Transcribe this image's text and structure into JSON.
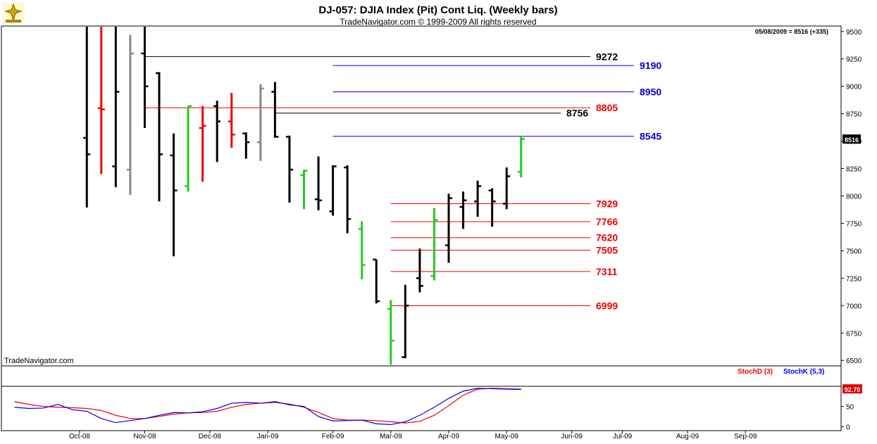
{
  "header": {
    "title": "DJ-057:  DJIA Index (Pit) Cont Liq.  (Weekly bars)",
    "copyright": "TradeNavigator.com © 1999-2009 All rights reserved",
    "last_update": "05/08/2009 = 8516 (+335)",
    "watermark": "TradeNavigator.com"
  },
  "colors": {
    "bar": "#000000",
    "up_bar": "#22cc22",
    "highlight_red": "#ee0000",
    "highlight_gray": "#888888",
    "support": "#ee0000",
    "resistance_blue": "#0000cc",
    "stoch_d": "#ee0000",
    "stoch_k": "#0000ee"
  },
  "chart_data": [
    {
      "type": "ohlc",
      "title": "DJ-057:  DJIA Index (Pit) Cont Liq.  (Weekly bars)",
      "x_ticks": [
        {
          "week": 4.5,
          "label": "Oct-08"
        },
        {
          "week": 9,
          "label": "Nov-08"
        },
        {
          "week": 13.5,
          "label": "Dec-08"
        },
        {
          "week": 17.5,
          "label": "Jan-09"
        },
        {
          "week": 22,
          "label": "Feb-09"
        },
        {
          "week": 26,
          "label": "Mar-09"
        },
        {
          "week": 30,
          "label": "Apr-09"
        },
        {
          "week": 34,
          "label": "May-09"
        },
        {
          "week": 38.5,
          "label": "Jun-09"
        },
        {
          "week": 42,
          "label": "Jul-09"
        },
        {
          "week": 46.5,
          "label": "Aug-09"
        },
        {
          "week": 50.5,
          "label": "Sep-09"
        }
      ],
      "y_ticks": [
        6500,
        6750,
        7000,
        7250,
        7500,
        7750,
        8000,
        8250,
        8500,
        8750,
        9000,
        9250,
        9500
      ],
      "ylim": [
        6450,
        9550
      ],
      "xlim": [
        0,
        55
      ],
      "bars": [
        {
          "w": 5,
          "o": 8530,
          "h": 9550,
          "l": 7895,
          "c": 8380,
          "color": "bar"
        },
        {
          "w": 6,
          "o": 8800,
          "h": 9550,
          "l": 8200,
          "c": 8790,
          "color": "highlight_red"
        },
        {
          "w": 7,
          "o": 8270,
          "h": 9600,
          "l": 8080,
          "c": 8950,
          "color": "bar"
        },
        {
          "w": 8,
          "o": 8240,
          "h": 9470,
          "l": 8010,
          "c": 9300,
          "color": "highlight_gray"
        },
        {
          "w": 9,
          "o": 9300,
          "h": 9550,
          "l": 8620,
          "c": 9000,
          "color": "bar"
        },
        {
          "w": 10,
          "o": 9120,
          "h": 9130,
          "l": 7950,
          "c": 8380,
          "color": "bar"
        },
        {
          "w": 11,
          "o": 8370,
          "h": 8570,
          "l": 7450,
          "c": 8050,
          "color": "bar"
        },
        {
          "w": 12,
          "o": 8090,
          "h": 8820,
          "l": 8040,
          "c": 8820,
          "color": "up_bar"
        },
        {
          "w": 13,
          "o": 8620,
          "h": 8820,
          "l": 8130,
          "c": 8640,
          "color": "highlight_red"
        },
        {
          "w": 14,
          "o": 8820,
          "h": 8870,
          "l": 8310,
          "c": 8680,
          "color": "bar"
        },
        {
          "w": 15,
          "o": 8680,
          "h": 8940,
          "l": 8440,
          "c": 8560,
          "color": "highlight_red"
        },
        {
          "w": 16,
          "o": 8570,
          "h": 8580,
          "l": 8340,
          "c": 8490,
          "color": "bar"
        },
        {
          "w": 17,
          "o": 8490,
          "h": 9020,
          "l": 8320,
          "c": 8980,
          "color": "highlight_gray"
        },
        {
          "w": 18,
          "o": 8950,
          "h": 9040,
          "l": 8530,
          "c": 8540,
          "color": "bar"
        },
        {
          "w": 19,
          "o": 8540,
          "h": 8550,
          "l": 7940,
          "c": 8240,
          "color": "bar"
        },
        {
          "w": 20,
          "o": 8190,
          "h": 8240,
          "l": 7880,
          "c": 8230,
          "color": "up_bar"
        },
        {
          "w": 21,
          "o": 7970,
          "h": 8360,
          "l": 7870,
          "c": 7960,
          "color": "bar"
        },
        {
          "w": 22,
          "o": 7860,
          "h": 8280,
          "l": 7820,
          "c": 8270,
          "color": "bar"
        },
        {
          "w": 23,
          "o": 8260,
          "h": 8280,
          "l": 7660,
          "c": 7790,
          "color": "bar"
        },
        {
          "w": 24,
          "o": 7700,
          "h": 7770,
          "l": 7240,
          "c": 7370,
          "color": "up_bar"
        },
        {
          "w": 25,
          "o": 7420,
          "h": 7420,
          "l": 7020,
          "c": 7040,
          "color": "bar"
        },
        {
          "w": 26,
          "o": 6970,
          "h": 7050,
          "l": 6460,
          "c": 6680,
          "color": "up_bar"
        },
        {
          "w": 27,
          "o": 6530,
          "h": 7190,
          "l": 6520,
          "c": 7000,
          "color": "bar"
        },
        {
          "w": 28,
          "o": 7250,
          "h": 7520,
          "l": 7120,
          "c": 7180,
          "color": "bar"
        },
        {
          "w": 29,
          "o": 7270,
          "h": 7890,
          "l": 7230,
          "c": 7780,
          "color": "up_bar"
        },
        {
          "w": 30,
          "o": 7550,
          "h": 8020,
          "l": 7390,
          "c": 7980,
          "color": "bar"
        },
        {
          "w": 31,
          "o": 7900,
          "h": 8040,
          "l": 7700,
          "c": 7960,
          "color": "bar"
        },
        {
          "w": 32,
          "o": 7950,
          "h": 8140,
          "l": 7810,
          "c": 8090,
          "color": "bar"
        },
        {
          "w": 33,
          "o": 8050,
          "h": 8070,
          "l": 7720,
          "c": 7950,
          "color": "bar"
        },
        {
          "w": 34,
          "o": 7930,
          "h": 8260,
          "l": 7880,
          "c": 8180,
          "color": "bar"
        },
        {
          "w": 35,
          "o": 8220,
          "h": 8550,
          "l": 8170,
          "c": 8520,
          "color": "up_bar"
        }
      ],
      "levels": [
        {
          "value": 9272,
          "label": "9272",
          "from_week": 9,
          "color": "bar"
        },
        {
          "value": 9190,
          "label": "9190",
          "from_week": 22,
          "color": "resistance_blue"
        },
        {
          "value": 8950,
          "label": "8950",
          "from_week": 22,
          "color": "resistance_blue"
        },
        {
          "value": 8805,
          "label": "8805",
          "from_week": 9,
          "color": "support"
        },
        {
          "value": 8756,
          "label": "8756",
          "from_week": 18,
          "color": "bar"
        },
        {
          "value": 8545,
          "label": "8545",
          "from_week": 22,
          "color": "resistance_blue"
        },
        {
          "value": 7929,
          "label": "7929",
          "from_week": 26,
          "color": "support"
        },
        {
          "value": 7766,
          "label": "7766",
          "from_week": 26,
          "color": "support"
        },
        {
          "value": 7620,
          "label": "7620",
          "from_week": 26,
          "color": "support"
        },
        {
          "value": 7505,
          "label": "7505",
          "from_week": 26,
          "color": "support"
        },
        {
          "value": 7311,
          "label": "7311",
          "from_week": 26,
          "color": "support"
        },
        {
          "value": 6999,
          "label": "6999",
          "from_week": 26,
          "color": "support"
        }
      ],
      "last_price_label": "8516",
      "last_price": 8516
    },
    {
      "type": "line",
      "legend": [
        {
          "name": "StochD (3)",
          "color": "stoch_d"
        },
        {
          "name": "StochK (5,3)",
          "color": "stoch_k"
        }
      ],
      "y_ticks": [
        0,
        50
      ],
      "ylim": [
        -10,
        100
      ],
      "last_value_label": "92.70",
      "last_value": 92.7,
      "series": [
        {
          "name": "StochD (3)",
          "color": "stoch_d",
          "x": [
            0,
            1,
            2,
            3,
            4,
            5,
            6,
            7,
            8,
            9,
            10,
            11,
            12,
            13,
            14,
            15,
            16,
            17,
            18,
            19,
            20,
            21,
            22,
            23,
            24,
            25,
            26,
            27,
            28,
            29,
            30,
            31,
            32,
            33,
            34,
            35
          ],
          "values": [
            62,
            55,
            50,
            48,
            47,
            45,
            40,
            28,
            20,
            20,
            25,
            31,
            34,
            35,
            38,
            48,
            55,
            58,
            60,
            56,
            48,
            35,
            20,
            16,
            16,
            15,
            12,
            9,
            13,
            28,
            52,
            78,
            93,
            95,
            94,
            93
          ]
        },
        {
          "name": "StochK (5,3)",
          "color": "stoch_k",
          "x": [
            0,
            1,
            2,
            3,
            4,
            5,
            6,
            7,
            8,
            9,
            10,
            11,
            12,
            13,
            14,
            15,
            16,
            17,
            18,
            19,
            20,
            21,
            22,
            23,
            24,
            25,
            26,
            27,
            28,
            29,
            30,
            31,
            32,
            33,
            34,
            35
          ],
          "values": [
            48,
            45,
            46,
            55,
            42,
            38,
            20,
            10,
            15,
            20,
            28,
            35,
            34,
            37,
            45,
            58,
            60,
            58,
            62,
            54,
            50,
            25,
            14,
            15,
            16,
            7,
            5,
            12,
            28,
            48,
            70,
            88,
            95,
            94,
            93,
            92
          ]
        }
      ]
    }
  ]
}
